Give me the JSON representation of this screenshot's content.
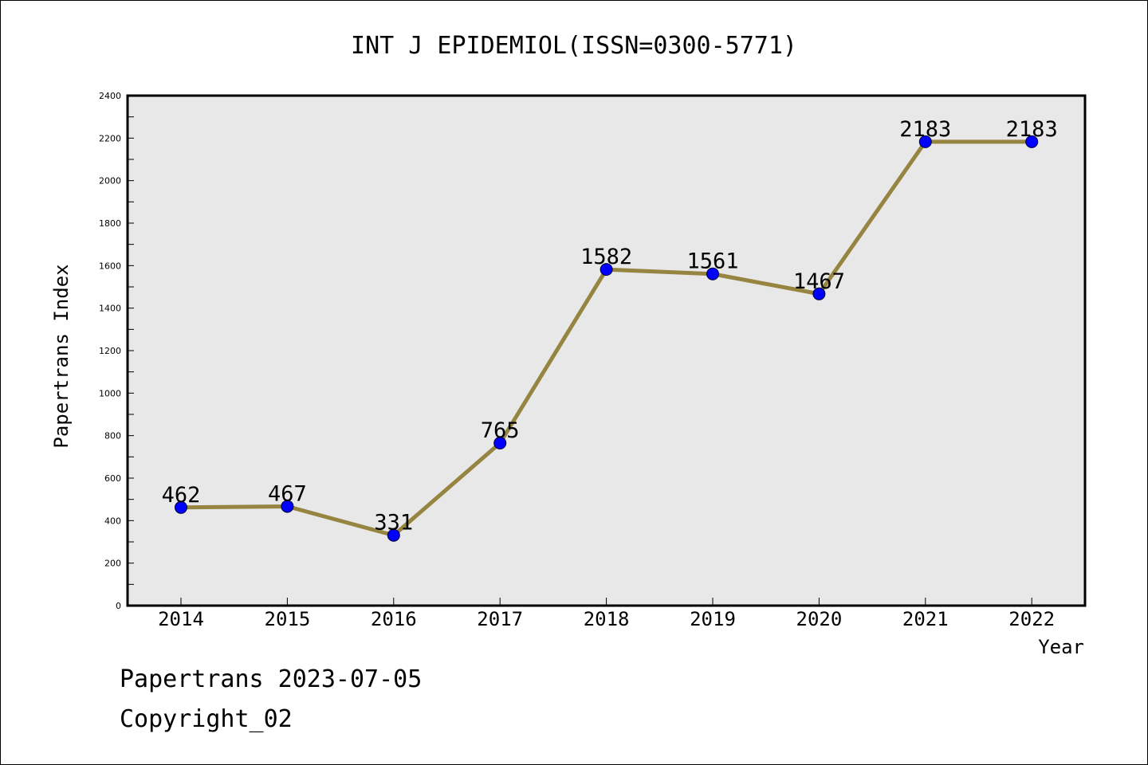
{
  "chart_data": {
    "type": "line",
    "title": "INT J EPIDEMIOL(ISSN=0300-5771)",
    "xlabel": "Year",
    "ylabel": "Papertrans Index",
    "categories": [
      "2014",
      "2015",
      "2016",
      "2017",
      "2018",
      "2019",
      "2020",
      "2021",
      "2022"
    ],
    "values": [
      462,
      467,
      331,
      765,
      1582,
      1561,
      1467,
      2183,
      2183
    ],
    "ylim": [
      0,
      2400
    ],
    "yticks": [
      "0",
      "200",
      "400",
      "600",
      "800",
      "1000",
      "1200",
      "1400",
      "1600",
      "1800",
      "2000",
      "2200",
      "2400"
    ],
    "grid": false,
    "line_color": "#968540",
    "marker_color": "#0000ff",
    "plot_background": "#e8e8e8"
  },
  "footer": {
    "line1": "Papertrans 2023-07-05",
    "line2": "Copyright_02"
  }
}
